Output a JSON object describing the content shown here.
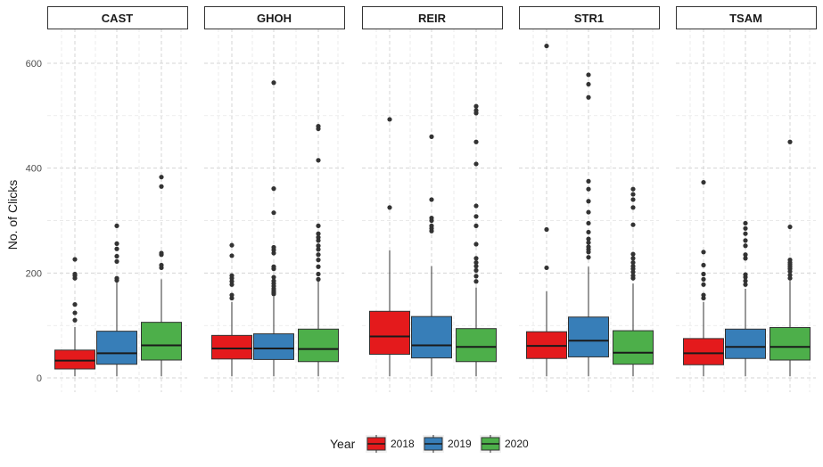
{
  "chart_data": {
    "type": "boxplot",
    "ylabel": "No. of Clicks",
    "xlabel": "",
    "ylim": [
      0,
      650
    ],
    "yticks": [
      0,
      200,
      400,
      600
    ],
    "grid": true,
    "legend": {
      "title": "Year",
      "position": "bottom",
      "entries": [
        "2018",
        "2019",
        "2020"
      ]
    },
    "colors": {
      "2018": "#E41A1C",
      "2019": "#377EB8",
      "2020": "#4DAF4A"
    },
    "panels": [
      {
        "label": "CAST",
        "boxes": [
          {
            "year": "2018",
            "min": 3,
            "q1": 17,
            "median": 33,
            "q3": 53,
            "max": 97,
            "outliers": [
              110,
              124,
              140,
              190,
              195,
              198,
              226
            ]
          },
          {
            "year": "2019",
            "min": 3,
            "q1": 26,
            "median": 47,
            "q3": 89,
            "max": 182,
            "outliers": [
              186,
              190,
              222,
              232,
              246,
              256,
              290
            ]
          },
          {
            "year": "2020",
            "min": 3,
            "q1": 34,
            "median": 62,
            "q3": 106,
            "max": 188,
            "outliers": [
              210,
              215,
              235,
              238,
              365,
              383
            ]
          }
        ]
      },
      {
        "label": "GHOH",
        "boxes": [
          {
            "year": "2018",
            "min": 3,
            "q1": 36,
            "median": 56,
            "q3": 81,
            "max": 145,
            "outliers": [
              152,
              158,
              178,
              184,
              190,
              195,
              233,
              253
            ]
          },
          {
            "year": "2019",
            "min": 3,
            "q1": 35,
            "median": 56,
            "q3": 84,
            "max": 155,
            "outliers": [
              160,
              163,
              166,
              170,
              175,
              180,
              185,
              192,
              208,
              212,
              238,
              244,
              249,
              315,
              361,
              563
            ]
          },
          {
            "year": "2020",
            "min": 3,
            "q1": 31,
            "median": 55,
            "q3": 93,
            "max": 185,
            "outliers": [
              188,
              198,
              212,
              225,
              235,
              245,
              252,
              262,
              268,
              275,
              290,
              415,
              475,
              480
            ]
          }
        ]
      },
      {
        "label": "REIR",
        "boxes": [
          {
            "year": "2018",
            "min": 3,
            "q1": 45,
            "median": 79,
            "q3": 127,
            "max": 243,
            "outliers": [
              325,
              493
            ]
          },
          {
            "year": "2019",
            "min": 3,
            "q1": 38,
            "median": 62,
            "q3": 117,
            "max": 213,
            "outliers": [
              280,
              285,
              290,
              300,
              305,
              340,
              460
            ]
          },
          {
            "year": "2020",
            "min": 3,
            "q1": 31,
            "median": 59,
            "q3": 94,
            "max": 172,
            "outliers": [
              184,
              194,
              205,
              213,
              220,
              228,
              255,
              290,
              308,
              328,
              408,
              450,
              505,
              510,
              518
            ]
          }
        ]
      },
      {
        "label": "STR1",
        "boxes": [
          {
            "year": "2018",
            "min": 3,
            "q1": 37,
            "median": 61,
            "q3": 88,
            "max": 165,
            "outliers": [
              210,
              283,
              633
            ]
          },
          {
            "year": "2019",
            "min": 3,
            "q1": 40,
            "median": 71,
            "q3": 116,
            "max": 212,
            "outliers": [
              230,
              240,
              245,
              250,
              258,
              265,
              278,
              295,
              316,
              337,
              360,
              375,
              535,
              560,
              578
            ]
          },
          {
            "year": "2020",
            "min": 3,
            "q1": 26,
            "median": 48,
            "q3": 90,
            "max": 180,
            "outliers": [
              190,
              195,
              202,
              208,
              213,
              220,
              228,
              236,
              292,
              325,
              340,
              350,
              360
            ]
          }
        ]
      },
      {
        "label": "TSAM",
        "boxes": [
          {
            "year": "2018",
            "min": 3,
            "q1": 25,
            "median": 47,
            "q3": 75,
            "max": 145,
            "outliers": [
              152,
              158,
              178,
              188,
              198,
              215,
              240,
              373
            ]
          },
          {
            "year": "2019",
            "min": 3,
            "q1": 37,
            "median": 59,
            "q3": 93,
            "max": 170,
            "outliers": [
              178,
              185,
              192,
              197,
              228,
              235,
              252,
              262,
              275,
              285,
              295
            ]
          },
          {
            "year": "2020",
            "min": 3,
            "q1": 34,
            "median": 59,
            "q3": 96,
            "max": 185,
            "outliers": [
              190,
              196,
              203,
              208,
              212,
              216,
              220,
              225,
              288,
              450
            ]
          }
        ]
      }
    ]
  }
}
